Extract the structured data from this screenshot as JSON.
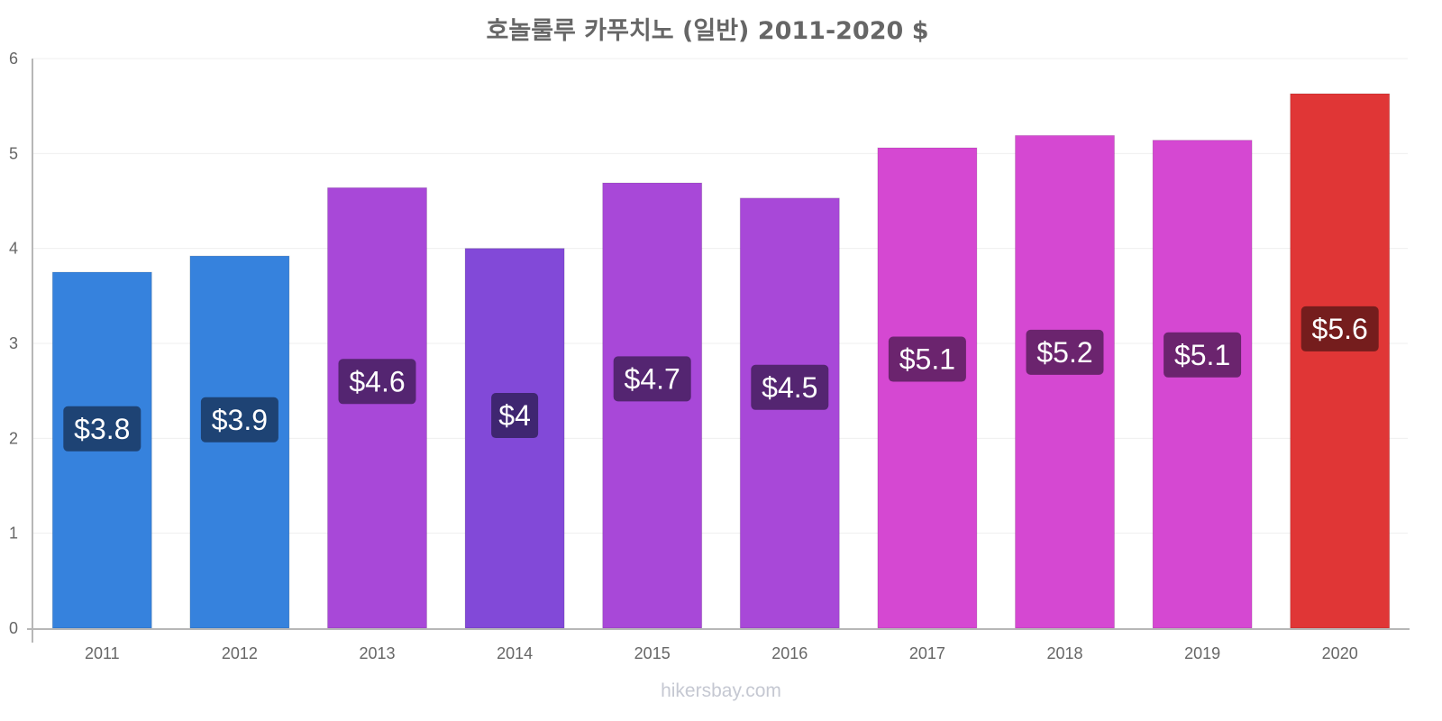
{
  "chart_data": {
    "type": "bar",
    "title": "호놀룰루 카푸치노 (일반) 2011-2020 $",
    "xlabel": "",
    "ylabel": "",
    "ylim": [
      0,
      6
    ],
    "yticks": [
      "0",
      "1",
      "2",
      "3",
      "4",
      "5",
      "6"
    ],
    "grid": true,
    "categories": [
      "2011",
      "2012",
      "2013",
      "2014",
      "2015",
      "2016",
      "2017",
      "2018",
      "2019",
      "2020"
    ],
    "values": [
      3.75,
      3.92,
      4.64,
      4.0,
      4.69,
      4.53,
      5.06,
      5.19,
      5.14,
      5.63
    ],
    "data_labels": [
      "$3.8",
      "$3.9",
      "$4.6",
      "$4",
      "$4.7",
      "$4.5",
      "$5.1",
      "$5.2",
      "$5.1",
      "$5.6"
    ],
    "bar_colors": [
      "#3682dd",
      "#3682dd",
      "#a848d8",
      "#8249d8",
      "#a848d8",
      "#a848d8",
      "#d548d2",
      "#d548d2",
      "#d548d2",
      "#e03636"
    ],
    "label_bg_colors": [
      "#1e4374",
      "#1e4374",
      "#542571",
      "#3f2671",
      "#542571",
      "#542571",
      "#6b246e",
      "#6b246e",
      "#6b246e",
      "#751d1d"
    ]
  },
  "watermark": "hikersbay.com"
}
